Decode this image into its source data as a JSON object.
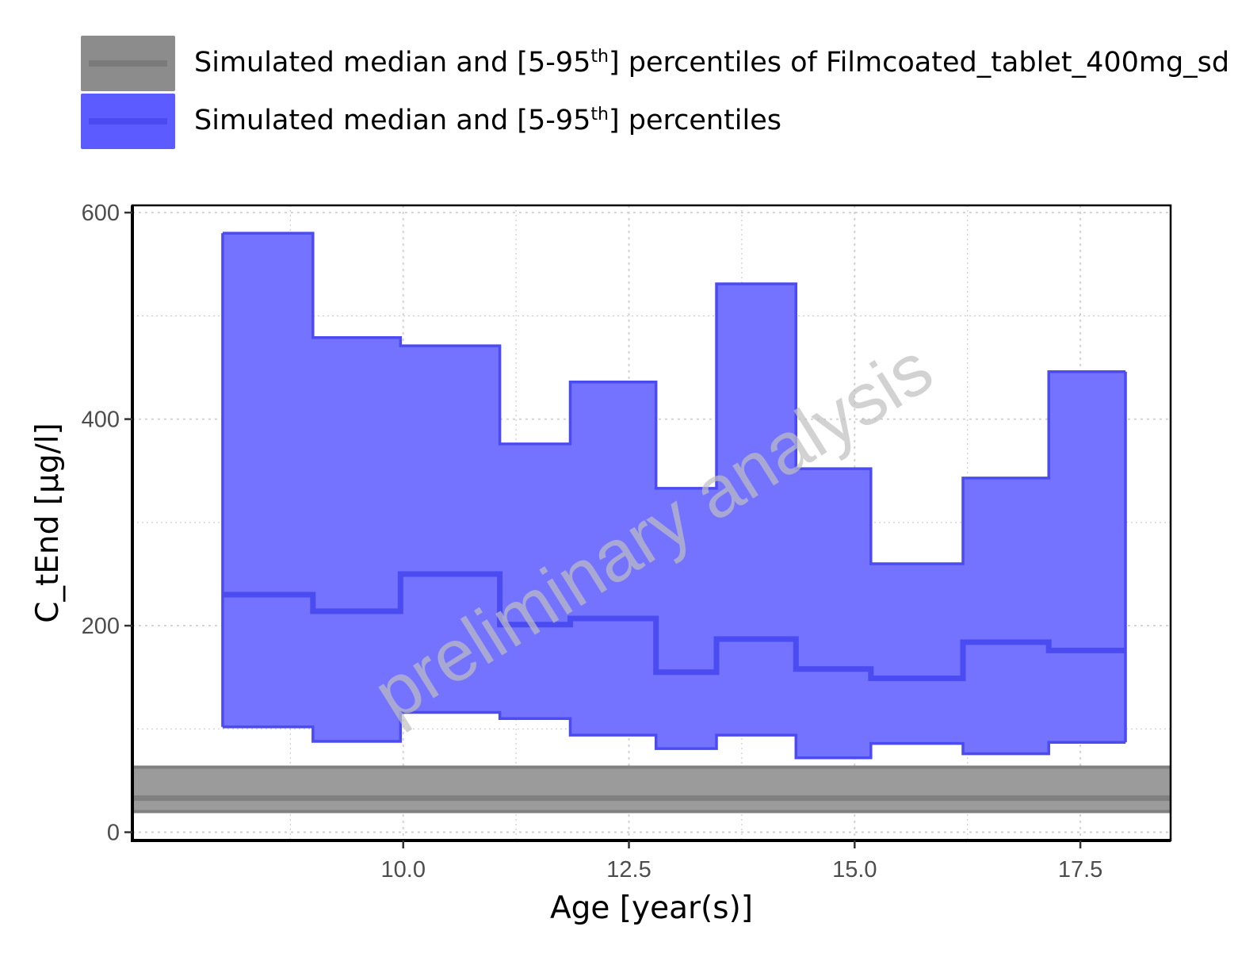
{
  "legend": [
    {
      "label_pre": "Simulated median and [5-95",
      "label_sup": "th",
      "label_post": "] percentiles of Filmcoated_tablet_400mg_sd",
      "fill": "#8c8c8c",
      "line": "#7a7a7a"
    },
    {
      "label_pre": "Simulated median and [5-95",
      "label_sup": "th",
      "label_post": "] percentiles",
      "fill": "#5b5bff",
      "line": "#4a4af0"
    }
  ],
  "watermark": "preliminary analysis",
  "colors": {
    "band_fill": "#7373ff",
    "band_line": "#4b4bf2",
    "ref_fill": "#9b9b9b",
    "ref_line": "#808080",
    "grid": "#cfcfcf",
    "tick_text": "#4d4d4d"
  },
  "chart_data": {
    "type": "area",
    "xlabel": "Age [year(s)]",
    "ylabel": "C_tEnd [µg/l]",
    "xlim": [
      7,
      18.5
    ],
    "ylim": [
      -8,
      607
    ],
    "xticks": [
      10.0,
      12.5,
      15.0,
      17.5
    ],
    "xtick_labels": [
      "10.0",
      "12.5",
      "15.0",
      "17.5"
    ],
    "yticks": [
      0,
      200,
      400,
      600
    ],
    "ytick_labels": [
      "0",
      "200",
      "400",
      "600"
    ],
    "grid": "dotted, major and minor",
    "legend_position": "top",
    "series": [
      {
        "name": "Simulated median and [5-95th] percentiles of Filmcoated_tablet_400mg_sd",
        "kind": "reference band",
        "median": 33,
        "p5": 20,
        "p95": 63
      },
      {
        "name": "Simulated median and [5-95th] percentiles",
        "kind": "step band",
        "bins": [
          {
            "x0": 8.0,
            "x1": 9.0,
            "p5": 102,
            "median": 230,
            "p95": 580
          },
          {
            "x0": 9.0,
            "x1": 9.97,
            "p5": 88,
            "median": 214,
            "p95": 479
          },
          {
            "x0": 9.97,
            "x1": 11.07,
            "p5": 116,
            "median": 250,
            "p95": 471
          },
          {
            "x0": 11.07,
            "x1": 11.85,
            "p5": 110,
            "median": 201,
            "p95": 376
          },
          {
            "x0": 11.85,
            "x1": 12.8,
            "p5": 94,
            "median": 207,
            "p95": 436
          },
          {
            "x0": 12.8,
            "x1": 13.47,
            "p5": 81,
            "median": 155,
            "p95": 333
          },
          {
            "x0": 13.47,
            "x1": 14.35,
            "p5": 94,
            "median": 187,
            "p95": 531
          },
          {
            "x0": 14.35,
            "x1": 15.18,
            "p5": 72,
            "median": 158,
            "p95": 352
          },
          {
            "x0": 15.18,
            "x1": 16.2,
            "p5": 86,
            "median": 149,
            "p95": 260
          },
          {
            "x0": 16.2,
            "x1": 17.15,
            "p5": 76,
            "median": 184,
            "p95": 343
          },
          {
            "x0": 17.15,
            "x1": 18.0,
            "p5": 87,
            "median": 176,
            "p95": 446
          }
        ]
      }
    ]
  }
}
